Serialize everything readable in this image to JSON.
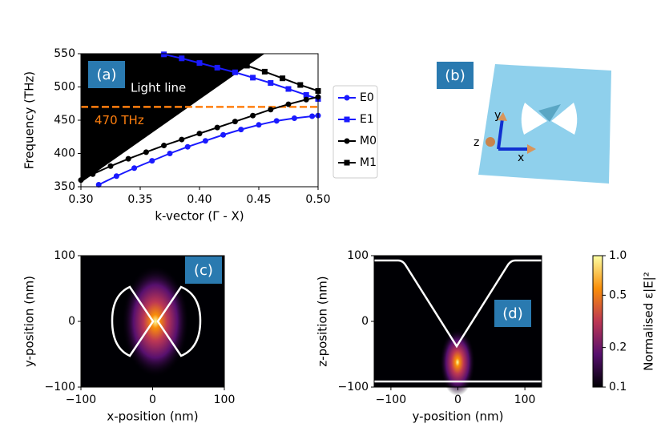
{
  "chart_data": [
    {
      "type": "line",
      "panel_label": "(a)",
      "xlabel": "k-vector (Γ - X)",
      "ylabel": "Frequency (THz)",
      "xlim": [
        0.3,
        0.5
      ],
      "ylim": [
        350,
        550
      ],
      "xticks": [
        {
          "value": 0.3,
          "label": "0.30"
        },
        {
          "value": 0.35,
          "label": "0.35"
        },
        {
          "value": 0.4,
          "label": "0.40"
        },
        {
          "value": 0.45,
          "label": "0.45"
        },
        {
          "value": 0.5,
          "label": "0.50"
        }
      ],
      "yticks": [
        350,
        400,
        450,
        500,
        550
      ],
      "light_line": {
        "label": "Light line",
        "x": [
          0.3,
          0.455
        ],
        "y": [
          356,
          550
        ],
        "color": "#000000"
      },
      "reference_line": {
        "label": "470 THz",
        "value": 470,
        "color": "#ff7f0e"
      },
      "legend": "outside right",
      "series": [
        {
          "name": "E0",
          "color": "#1a1aff",
          "marker": "circle",
          "x": [
            0.315,
            0.33,
            0.345,
            0.36,
            0.375,
            0.39,
            0.405,
            0.42,
            0.435,
            0.45,
            0.465,
            0.48,
            0.495,
            0.5
          ],
          "values": [
            353,
            366,
            378,
            389,
            400,
            410,
            419,
            428,
            436,
            443,
            449,
            453,
            456,
            457
          ]
        },
        {
          "name": "E1",
          "color": "#1a1aff",
          "marker": "square",
          "x": [
            0.37,
            0.385,
            0.4,
            0.415,
            0.43,
            0.445,
            0.46,
            0.475,
            0.49,
            0.5
          ],
          "values": [
            549,
            543,
            536,
            529,
            522,
            514,
            506,
            497,
            488,
            482
          ]
        },
        {
          "name": "M0",
          "color": "#000000",
          "marker": "circle",
          "x": [
            0.3,
            0.31,
            0.325,
            0.34,
            0.355,
            0.37,
            0.385,
            0.4,
            0.415,
            0.43,
            0.445,
            0.46,
            0.475,
            0.49,
            0.5
          ],
          "values": [
            360,
            369,
            381,
            392,
            402,
            412,
            421,
            430,
            439,
            448,
            457,
            466,
            474,
            481,
            485
          ]
        },
        {
          "name": "M1",
          "color": "#000000",
          "marker": "square",
          "x": [
            0.44,
            0.455,
            0.47,
            0.485,
            0.5
          ],
          "values": [
            532,
            523,
            513,
            503,
            494
          ]
        }
      ]
    },
    {
      "type": "illustration",
      "panel_label": "(b)",
      "axis_labels": [
        "x",
        "y",
        "z"
      ]
    },
    {
      "type": "heatmap",
      "panel_label": "(c)",
      "xlabel": "x-position (nm)",
      "ylabel": "y-position (nm)",
      "colormap": "inferno",
      "xlim": [
        -100,
        100
      ],
      "ylim": [
        -100,
        100
      ],
      "xticks": [
        {
          "value": -100,
          "label": "−100"
        },
        0,
        100
      ],
      "yticks": [
        {
          "value": -100,
          "label": "−100"
        },
        0,
        100
      ]
    },
    {
      "type": "heatmap",
      "panel_label": "(d)",
      "xlabel": "y-position (nm)",
      "ylabel": "z-position (nm)",
      "colormap": "inferno",
      "xlim": [
        -125,
        125
      ],
      "ylim": [
        -100,
        100
      ],
      "xticks": [
        {
          "value": -100,
          "label": "−100"
        },
        0,
        100
      ],
      "yticks": [
        {
          "value": -100,
          "label": "−100"
        },
        0,
        100
      ]
    },
    {
      "type": "colorbar",
      "ylabel": "Normalised ε|E|²",
      "colormap": "inferno",
      "log_scale": true,
      "ylim": [
        0.1,
        1.0
      ],
      "yticks": [
        0.1,
        0.2,
        0.5,
        {
          "value": 1.0,
          "label": "1.0"
        }
      ]
    }
  ]
}
